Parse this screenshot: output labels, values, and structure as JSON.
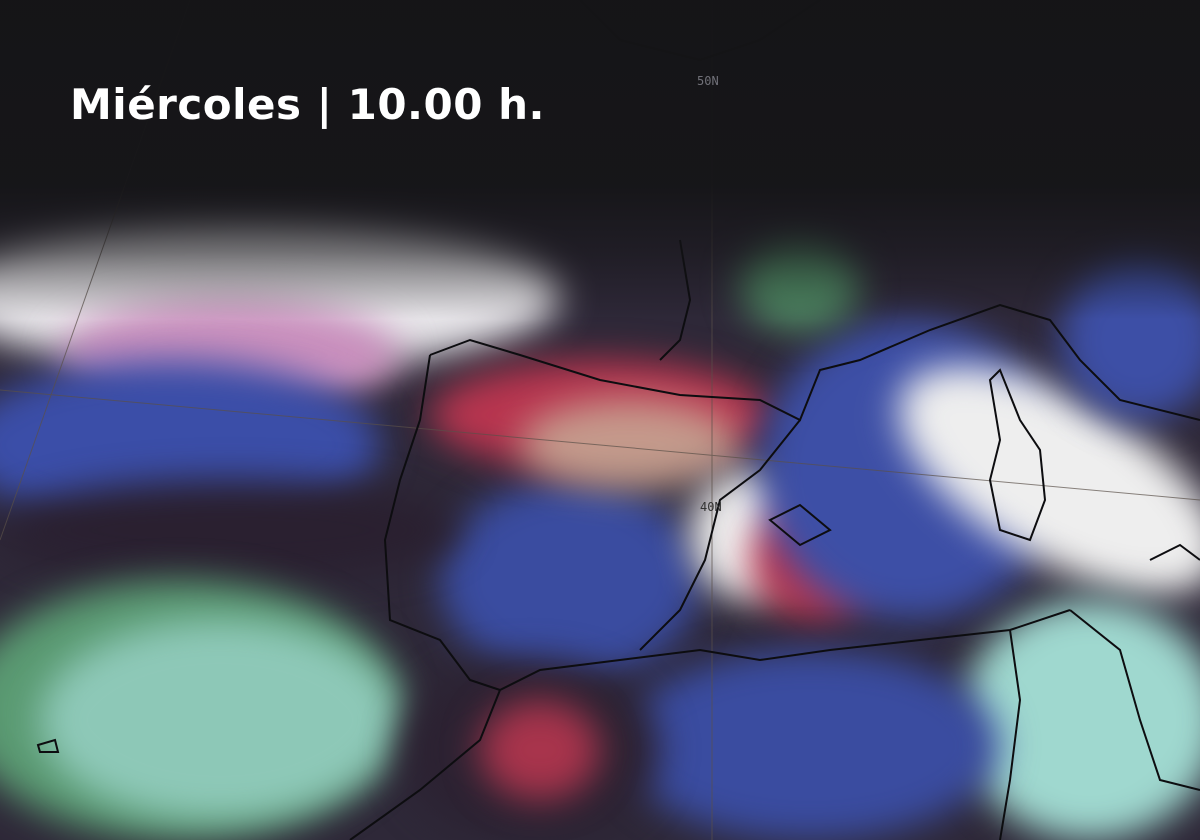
{
  "title": "Miércoles | 10.00 h.",
  "map": {
    "type": "satellite-image",
    "grid_labels": {
      "lat_50": "50N",
      "lat_40": "40N"
    },
    "colors": {
      "white_cloud": "#f2f2f2",
      "blue": "#3d4fa6",
      "red": "#b8354f",
      "dark_purple": "#2c2232",
      "green": "#4f8a64",
      "cyan": "#8fd0c8",
      "pink": "#d99ac0",
      "tan": "#c9b39b"
    }
  }
}
